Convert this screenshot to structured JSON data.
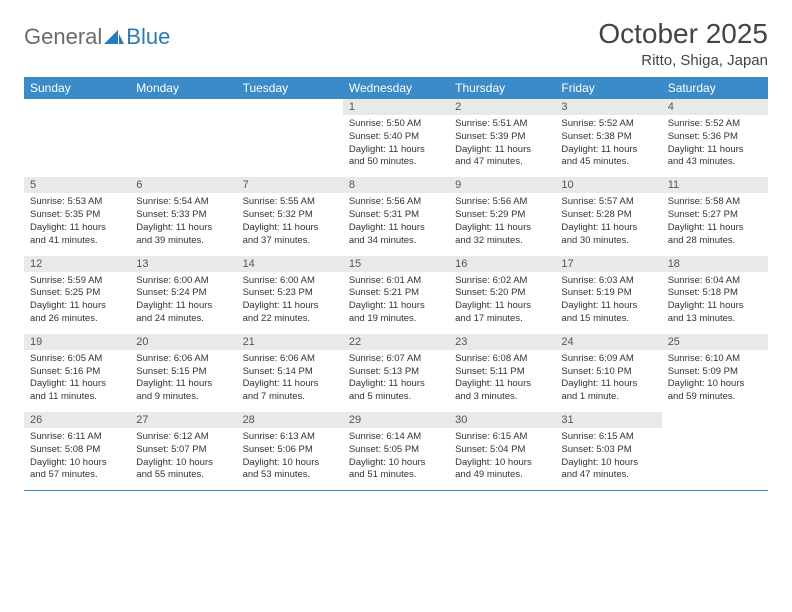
{
  "brand": {
    "text1": "General",
    "text2": "Blue",
    "icon_color": "#2a7ab8"
  },
  "title": "October 2025",
  "location": "Ritto, Shiga, Japan",
  "colors": {
    "header_bg": "#3b8bc9",
    "header_text": "#ffffff",
    "daynum_bg": "#e9e9e9",
    "rule": "#3b8bc9",
    "body_text": "#333333",
    "logo_gray": "#6b6b6b"
  },
  "day_names": [
    "Sunday",
    "Monday",
    "Tuesday",
    "Wednesday",
    "Thursday",
    "Friday",
    "Saturday"
  ],
  "weeks": [
    [
      null,
      null,
      null,
      {
        "n": "1",
        "sr": "5:50 AM",
        "ss": "5:40 PM",
        "dl": "11 hours and 50 minutes."
      },
      {
        "n": "2",
        "sr": "5:51 AM",
        "ss": "5:39 PM",
        "dl": "11 hours and 47 minutes."
      },
      {
        "n": "3",
        "sr": "5:52 AM",
        "ss": "5:38 PM",
        "dl": "11 hours and 45 minutes."
      },
      {
        "n": "4",
        "sr": "5:52 AM",
        "ss": "5:36 PM",
        "dl": "11 hours and 43 minutes."
      }
    ],
    [
      {
        "n": "5",
        "sr": "5:53 AM",
        "ss": "5:35 PM",
        "dl": "11 hours and 41 minutes."
      },
      {
        "n": "6",
        "sr": "5:54 AM",
        "ss": "5:33 PM",
        "dl": "11 hours and 39 minutes."
      },
      {
        "n": "7",
        "sr": "5:55 AM",
        "ss": "5:32 PM",
        "dl": "11 hours and 37 minutes."
      },
      {
        "n": "8",
        "sr": "5:56 AM",
        "ss": "5:31 PM",
        "dl": "11 hours and 34 minutes."
      },
      {
        "n": "9",
        "sr": "5:56 AM",
        "ss": "5:29 PM",
        "dl": "11 hours and 32 minutes."
      },
      {
        "n": "10",
        "sr": "5:57 AM",
        "ss": "5:28 PM",
        "dl": "11 hours and 30 minutes."
      },
      {
        "n": "11",
        "sr": "5:58 AM",
        "ss": "5:27 PM",
        "dl": "11 hours and 28 minutes."
      }
    ],
    [
      {
        "n": "12",
        "sr": "5:59 AM",
        "ss": "5:25 PM",
        "dl": "11 hours and 26 minutes."
      },
      {
        "n": "13",
        "sr": "6:00 AM",
        "ss": "5:24 PM",
        "dl": "11 hours and 24 minutes."
      },
      {
        "n": "14",
        "sr": "6:00 AM",
        "ss": "5:23 PM",
        "dl": "11 hours and 22 minutes."
      },
      {
        "n": "15",
        "sr": "6:01 AM",
        "ss": "5:21 PM",
        "dl": "11 hours and 19 minutes."
      },
      {
        "n": "16",
        "sr": "6:02 AM",
        "ss": "5:20 PM",
        "dl": "11 hours and 17 minutes."
      },
      {
        "n": "17",
        "sr": "6:03 AM",
        "ss": "5:19 PM",
        "dl": "11 hours and 15 minutes."
      },
      {
        "n": "18",
        "sr": "6:04 AM",
        "ss": "5:18 PM",
        "dl": "11 hours and 13 minutes."
      }
    ],
    [
      {
        "n": "19",
        "sr": "6:05 AM",
        "ss": "5:16 PM",
        "dl": "11 hours and 11 minutes."
      },
      {
        "n": "20",
        "sr": "6:06 AM",
        "ss": "5:15 PM",
        "dl": "11 hours and 9 minutes."
      },
      {
        "n": "21",
        "sr": "6:06 AM",
        "ss": "5:14 PM",
        "dl": "11 hours and 7 minutes."
      },
      {
        "n": "22",
        "sr": "6:07 AM",
        "ss": "5:13 PM",
        "dl": "11 hours and 5 minutes."
      },
      {
        "n": "23",
        "sr": "6:08 AM",
        "ss": "5:11 PM",
        "dl": "11 hours and 3 minutes."
      },
      {
        "n": "24",
        "sr": "6:09 AM",
        "ss": "5:10 PM",
        "dl": "11 hours and 1 minute."
      },
      {
        "n": "25",
        "sr": "6:10 AM",
        "ss": "5:09 PM",
        "dl": "10 hours and 59 minutes."
      }
    ],
    [
      {
        "n": "26",
        "sr": "6:11 AM",
        "ss": "5:08 PM",
        "dl": "10 hours and 57 minutes."
      },
      {
        "n": "27",
        "sr": "6:12 AM",
        "ss": "5:07 PM",
        "dl": "10 hours and 55 minutes."
      },
      {
        "n": "28",
        "sr": "6:13 AM",
        "ss": "5:06 PM",
        "dl": "10 hours and 53 minutes."
      },
      {
        "n": "29",
        "sr": "6:14 AM",
        "ss": "5:05 PM",
        "dl": "10 hours and 51 minutes."
      },
      {
        "n": "30",
        "sr": "6:15 AM",
        "ss": "5:04 PM",
        "dl": "10 hours and 49 minutes."
      },
      {
        "n": "31",
        "sr": "6:15 AM",
        "ss": "5:03 PM",
        "dl": "10 hours and 47 minutes."
      },
      null
    ]
  ],
  "labels": {
    "sunrise": "Sunrise:",
    "sunset": "Sunset:",
    "daylight": "Daylight:"
  }
}
